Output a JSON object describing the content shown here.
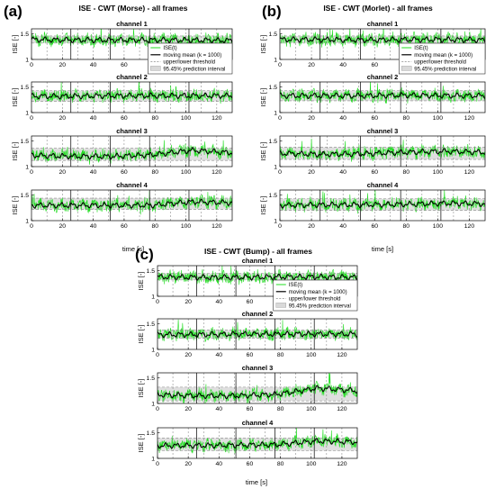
{
  "colors": {
    "raw": "#22dd22",
    "mean": "#000000",
    "threshold": "#8c8c8c",
    "band": "#d9d9d9",
    "axis": "#000000"
  },
  "chart_data": [
    {
      "panel": "(a)",
      "title": "ISE - CWT (Morse) - all frames",
      "type": "line",
      "xlabel": "time [s]",
      "ylabel": "ISE [-]",
      "xlim": [
        0,
        130
      ],
      "ylim": [
        1,
        1.6
      ],
      "xticks": [
        "0",
        "20",
        "40",
        "60",
        "80",
        "100",
        "120"
      ],
      "yticks": [
        "1",
        "1.5"
      ],
      "segment_boundaries_s": [
        25.5,
        51,
        76.5,
        102
      ],
      "legend": [
        "ISE(t)",
        "moving mean (k = 1000)",
        "upper/lower threshold",
        "95.45% prediction interval"
      ],
      "legend_location": "upper-right of channel 1",
      "channels": [
        {
          "name": "channel 1",
          "mean_level": [
            1.39,
            1.38,
            1.38,
            1.38,
            1.38,
            1.37
          ],
          "threshold": [
            1.32,
            1.46
          ]
        },
        {
          "name": "channel 2",
          "mean_level": [
            1.32,
            1.32,
            1.33,
            1.33,
            1.33,
            1.33
          ],
          "threshold": [
            1.22,
            1.43
          ]
        },
        {
          "name": "channel 3",
          "mean_level": [
            1.22,
            1.2,
            1.2,
            1.23,
            1.32,
            1.27
          ],
          "threshold": [
            1.12,
            1.36
          ]
        },
        {
          "name": "channel 4",
          "mean_level": [
            1.3,
            1.3,
            1.3,
            1.3,
            1.37,
            1.35
          ],
          "threshold": [
            1.22,
            1.44
          ]
        }
      ]
    },
    {
      "panel": "(b)",
      "title": "ISE - CWT (Morlet) - all frames",
      "type": "line",
      "xlabel": "time [s]",
      "ylabel": "ISE [-]",
      "xlim": [
        0,
        130
      ],
      "ylim": [
        1,
        1.6
      ],
      "xticks": [
        "0",
        "20",
        "40",
        "60",
        "80",
        "100",
        "120"
      ],
      "yticks": [
        "1",
        "1.5"
      ],
      "segment_boundaries_s": [
        25.5,
        51,
        76.5,
        102
      ],
      "legend": [
        "ISE(t)",
        "moving mean (k = 1000)",
        "upper/lower threshold",
        "95.45% prediction interval"
      ],
      "legend_location": "upper-right of channel 1",
      "channels": [
        {
          "name": "channel 1",
          "mean_level": [
            1.39,
            1.39,
            1.38,
            1.39,
            1.39,
            1.38
          ],
          "threshold": [
            1.32,
            1.46
          ]
        },
        {
          "name": "channel 2",
          "mean_level": [
            1.33,
            1.33,
            1.33,
            1.34,
            1.33,
            1.33
          ],
          "threshold": [
            1.23,
            1.43
          ]
        },
        {
          "name": "channel 3",
          "mean_level": [
            1.26,
            1.24,
            1.25,
            1.28,
            1.3,
            1.28
          ],
          "threshold": [
            1.14,
            1.38
          ]
        },
        {
          "name": "channel 4",
          "mean_level": [
            1.3,
            1.31,
            1.31,
            1.32,
            1.34,
            1.33
          ],
          "threshold": [
            1.2,
            1.43
          ]
        }
      ]
    },
    {
      "panel": "(c)",
      "title": "ISE - CWT (Bump) - all frames",
      "type": "line",
      "xlabel": "time [s]",
      "ylabel": "ISE [-]",
      "xlim": [
        0,
        130
      ],
      "ylim": [
        1,
        1.6
      ],
      "xticks": [
        "0",
        "20",
        "40",
        "60",
        "80",
        "100",
        "120"
      ],
      "yticks": [
        "1",
        "1.5"
      ],
      "segment_boundaries_s": [
        25.5,
        51,
        76.5,
        102
      ],
      "legend": [
        "ISE(t)",
        "moving mean (k = 1000)",
        "upper/lower threshold",
        "95.45% prediction interval"
      ],
      "legend_location": "upper-right of channel 1",
      "channels": [
        {
          "name": "channel 1",
          "mean_level": [
            1.38,
            1.37,
            1.37,
            1.38,
            1.38,
            1.37
          ],
          "threshold": [
            1.32,
            1.45
          ]
        },
        {
          "name": "channel 2",
          "mean_level": [
            1.29,
            1.29,
            1.3,
            1.3,
            1.3,
            1.3
          ],
          "threshold": [
            1.22,
            1.38
          ]
        },
        {
          "name": "channel 3",
          "mean_level": [
            1.17,
            1.15,
            1.15,
            1.18,
            1.3,
            1.25
          ],
          "threshold": [
            1.05,
            1.32
          ]
        },
        {
          "name": "channel 4",
          "mean_level": [
            1.25,
            1.25,
            1.26,
            1.27,
            1.34,
            1.32
          ],
          "threshold": [
            1.15,
            1.4
          ]
        }
      ]
    }
  ]
}
